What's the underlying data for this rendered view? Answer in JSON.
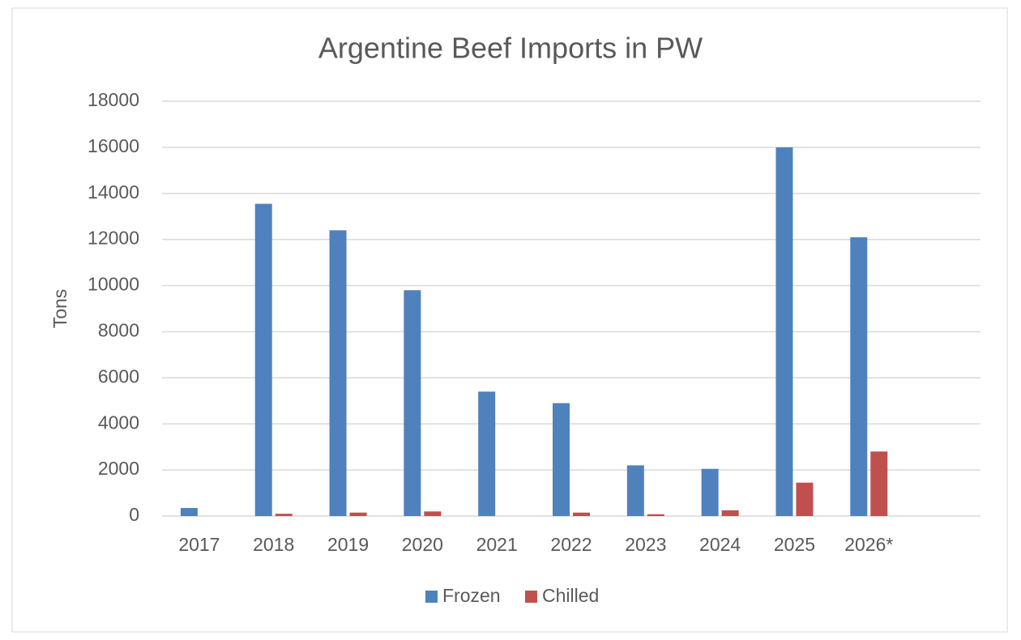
{
  "chart_data": {
    "type": "bar",
    "title": "Argentine Beef Imports in PW",
    "y_label": "Tons",
    "categories": [
      "2017",
      "2018",
      "2019",
      "2020",
      "2021",
      "2022",
      "2023",
      "2024",
      "2025",
      "2026*",
      null
    ],
    "series": [
      {
        "name": "Frozen",
        "color": "#4f81bd",
        "values": [
          350,
          13550,
          12400,
          9800,
          5400,
          4900,
          2200,
          2050,
          16000,
          12100,
          null
        ]
      },
      {
        "name": "Chilled",
        "color": "#c0504d",
        "values": [
          0,
          100,
          150,
          200,
          0,
          150,
          80,
          250,
          1450,
          2800,
          null
        ]
      }
    ],
    "ylim": [
      0,
      18000
    ],
    "yticks": [
      0,
      2000,
      4000,
      6000,
      8000,
      10000,
      12000,
      14000,
      16000,
      18000
    ],
    "grid": true,
    "legend": "bottom"
  }
}
